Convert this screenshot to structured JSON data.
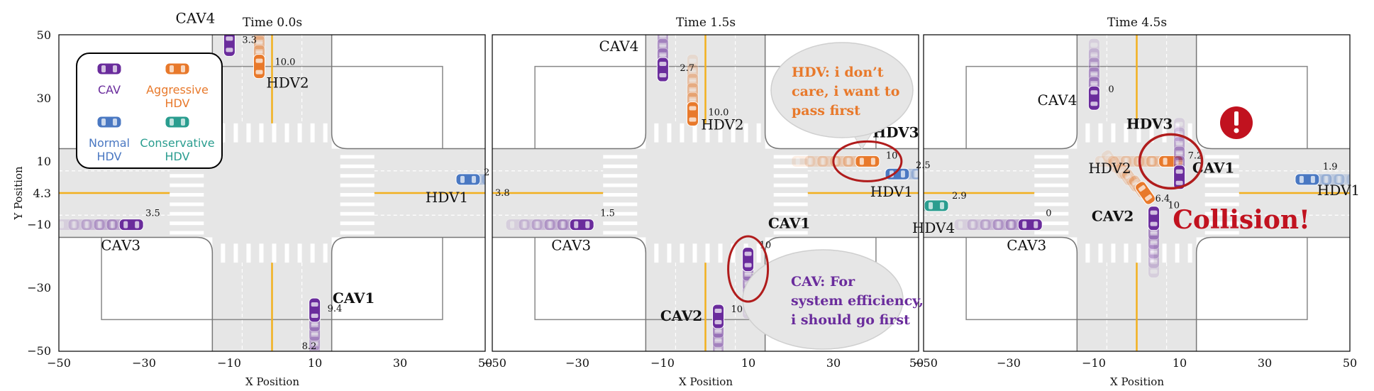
{
  "figure": {
    "x_axis_title": "X Position",
    "y_axis_title": "Y Position",
    "x_ticks": [
      "−50",
      "−30",
      "−10",
      "10",
      "30",
      "50"
    ],
    "y_ticks": [
      "50",
      "30",
      "10",
      "4.3",
      "−10",
      "−30",
      "−50"
    ],
    "x_range": [
      -50,
      50
    ],
    "y_range": [
      -50,
      50
    ],
    "colors": {
      "cav": "#6a2c9c",
      "aggressive_hdv": "#e8792b",
      "normal_hdv": "#4a78c2",
      "conservative_hdv": "#2a9d8f",
      "road": "#e6e6e6",
      "center_line": "#f2b01e",
      "highlight_ring": "#b01c1c",
      "alert": "#c1121f"
    }
  },
  "legend": {
    "items": [
      {
        "label_1": "CAV",
        "label_2": "",
        "color": "#6a2c9c"
      },
      {
        "label_1": "Aggressive",
        "label_2": "HDV",
        "color": "#e8792b"
      },
      {
        "label_1": "Normal",
        "label_2": "HDV",
        "color": "#4a78c2"
      },
      {
        "label_1": "Conservative",
        "label_2": "HDV",
        "color": "#2a9d8f"
      }
    ]
  },
  "panels": [
    {
      "title": "Time 0.0s",
      "vehicles": [
        {
          "name": "CAV4",
          "type": "cav",
          "x": -10,
          "y": 47,
          "heading": "v",
          "speed": "3.3",
          "label_bold": false
        },
        {
          "name": "HDV2",
          "type": "aggressive_hdv",
          "x": -3,
          "y": 40,
          "heading": "v",
          "speed": "10.0",
          "label_bold": false
        },
        {
          "name": "HDV1",
          "type": "normal_hdv",
          "x": 46,
          "y": 4.3,
          "heading": "h",
          "speed": "2",
          "label_bold": false
        },
        {
          "name": "CAV3",
          "type": "cav",
          "x": -33,
          "y": -10,
          "heading": "h",
          "speed": "3.5",
          "label_bold": false
        },
        {
          "name": "CAV1",
          "type": "cav",
          "x": 10,
          "y": -37,
          "heading": "v",
          "speed": "9.4",
          "label_bold": true
        }
      ],
      "extra_texts": [
        "8.2",
        "3.8"
      ]
    },
    {
      "title": "Time 1.5s",
      "vehicles": [
        {
          "name": "CAV4",
          "type": "cav",
          "x": -10,
          "y": 39,
          "heading": "v",
          "speed": "2.7",
          "label_bold": false
        },
        {
          "name": "HDV2",
          "type": "aggressive_hdv",
          "x": -3,
          "y": 25,
          "heading": "v",
          "speed": "10.0",
          "label_bold": false
        },
        {
          "name": "HDV3",
          "type": "aggressive_hdv",
          "x": 38,
          "y": 10,
          "heading": "h",
          "speed": "10",
          "label_bold": true
        },
        {
          "name": "HDV1",
          "type": "normal_hdv",
          "x": 45,
          "y": 6,
          "heading": "h",
          "speed": "2.5",
          "label_bold": false
        },
        {
          "name": "CAV3",
          "type": "cav",
          "x": -29,
          "y": -10,
          "heading": "h",
          "speed": "1.5",
          "label_bold": false
        },
        {
          "name": "CAV1",
          "type": "cav",
          "x": 10,
          "y": -21,
          "heading": "v",
          "speed": "10",
          "label_bold": true
        },
        {
          "name": "CAV2",
          "type": "cav",
          "x": 3,
          "y": -39,
          "heading": "v",
          "speed": "10",
          "label_bold": true
        }
      ],
      "bubbles": [
        {
          "who": "hdv",
          "lines": [
            "HDV: i don’t",
            "care, i want to",
            "pass first"
          ]
        },
        {
          "who": "cav",
          "lines": [
            "CAV: For",
            "system efficiency,",
            "i should go first"
          ]
        }
      ]
    },
    {
      "title": "Time 4.5s",
      "vehicles": [
        {
          "name": "CAV4",
          "type": "cav",
          "x": -10,
          "y": 30,
          "heading": "v",
          "speed": "0",
          "label_bold": false
        },
        {
          "name": "HDV3",
          "type": "aggressive_hdv",
          "x": 8,
          "y": 10,
          "heading": "h",
          "speed": "7.2",
          "label_bold": true
        },
        {
          "name": "HDV2",
          "type": "aggressive_hdv",
          "x": 2,
          "y": 0,
          "heading": "d",
          "speed": "6.4",
          "label_bold": false
        },
        {
          "name": "CAV1",
          "type": "cav",
          "x": 10,
          "y": 5,
          "heading": "v",
          "speed": "",
          "label_bold": true
        },
        {
          "name": "HDV1",
          "type": "normal_hdv",
          "x": 40,
          "y": 4.3,
          "heading": "h",
          "speed": "1.9",
          "label_bold": false
        },
        {
          "name": "HDV4",
          "type": "conservative_hdv",
          "x": -47,
          "y": -4,
          "heading": "h",
          "speed": "2.9",
          "label_bold": false
        },
        {
          "name": "CAV3",
          "type": "cav",
          "x": -25,
          "y": -10,
          "heading": "h",
          "speed": "0",
          "label_bold": false
        },
        {
          "name": "CAV2",
          "type": "cav",
          "x": 4,
          "y": -8,
          "heading": "v",
          "speed": "10",
          "label_bold": true
        }
      ],
      "alert_text": "Collision!",
      "alert_icon": "exclamation-icon"
    }
  ]
}
